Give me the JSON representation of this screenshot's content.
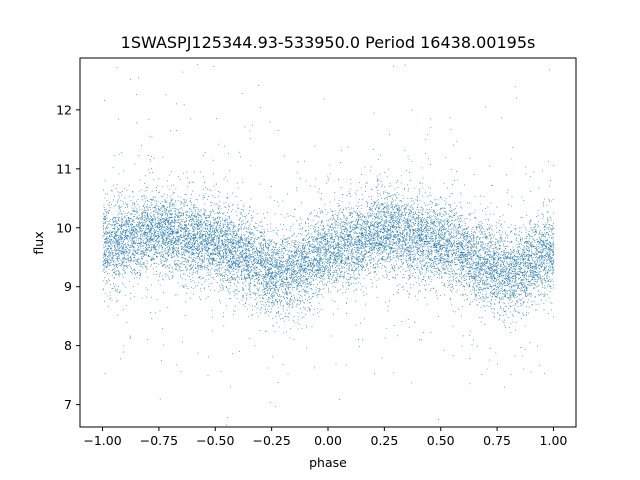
{
  "chart_data": {
    "type": "scatter",
    "title": "1SWASPJ125344.93-533950.0 Period 16438.00195s",
    "xlabel": "phase",
    "ylabel": "flux",
    "xlim": [
      -1.1,
      1.1
    ],
    "ylim": [
      6.62,
      12.88
    ],
    "x_ticks": [
      -1.0,
      -0.75,
      -0.5,
      -0.25,
      0.0,
      0.25,
      0.5,
      0.75,
      1.0
    ],
    "x_tick_labels": [
      "−1.00",
      "−0.75",
      "−0.50",
      "−0.25",
      "0.00",
      "0.25",
      "0.50",
      "0.75",
      "1.00"
    ],
    "y_ticks": [
      7,
      8,
      9,
      10,
      11,
      12
    ],
    "y_tick_labels": [
      "7",
      "8",
      "9",
      "10",
      "11",
      "12"
    ],
    "grid": false,
    "legend": "none",
    "marker_color": "#1f77b4",
    "series": [
      {
        "phase_range": [
          -1.0,
          1.0
        ],
        "approx_point_count": 14000,
        "trend": {
          "phase": [
            -1.0,
            -0.75,
            -0.5,
            -0.25,
            -0.2,
            0.0,
            0.25,
            0.5,
            0.75,
            0.8,
            1.0
          ],
          "flux": [
            9.7,
            9.95,
            9.75,
            9.3,
            9.2,
            9.6,
            9.95,
            9.75,
            9.3,
            9.2,
            9.6
          ]
        },
        "scatter_spread": 0.35
      }
    ]
  }
}
